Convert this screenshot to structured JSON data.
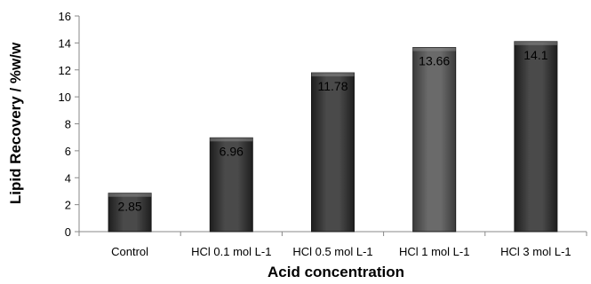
{
  "chart_data": {
    "type": "bar",
    "categories": [
      "Control",
      "HCl 0.1 mol L-1",
      "HCl 0.5 mol L-1",
      "HCl 1 mol L-1",
      "HCl 3 mol L-1"
    ],
    "values": [
      2.85,
      6.96,
      11.78,
      13.66,
      14.1
    ],
    "data_labels": [
      "2.85",
      "6.96",
      "11.78",
      "13.66",
      "14.1"
    ],
    "xlabel": "Acid concentration",
    "ylabel": "Lipid  Recovery / %w/w",
    "ylim": [
      0,
      16
    ],
    "yticks": [
      0,
      2,
      4,
      6,
      8,
      10,
      12,
      14,
      16
    ],
    "grid": false,
    "colors": {
      "bar_fill": "#3a3a3a",
      "bar_fill_light": "#5c5c5c",
      "bar_edge": "#1a1a1a",
      "axis": "#888888"
    }
  }
}
